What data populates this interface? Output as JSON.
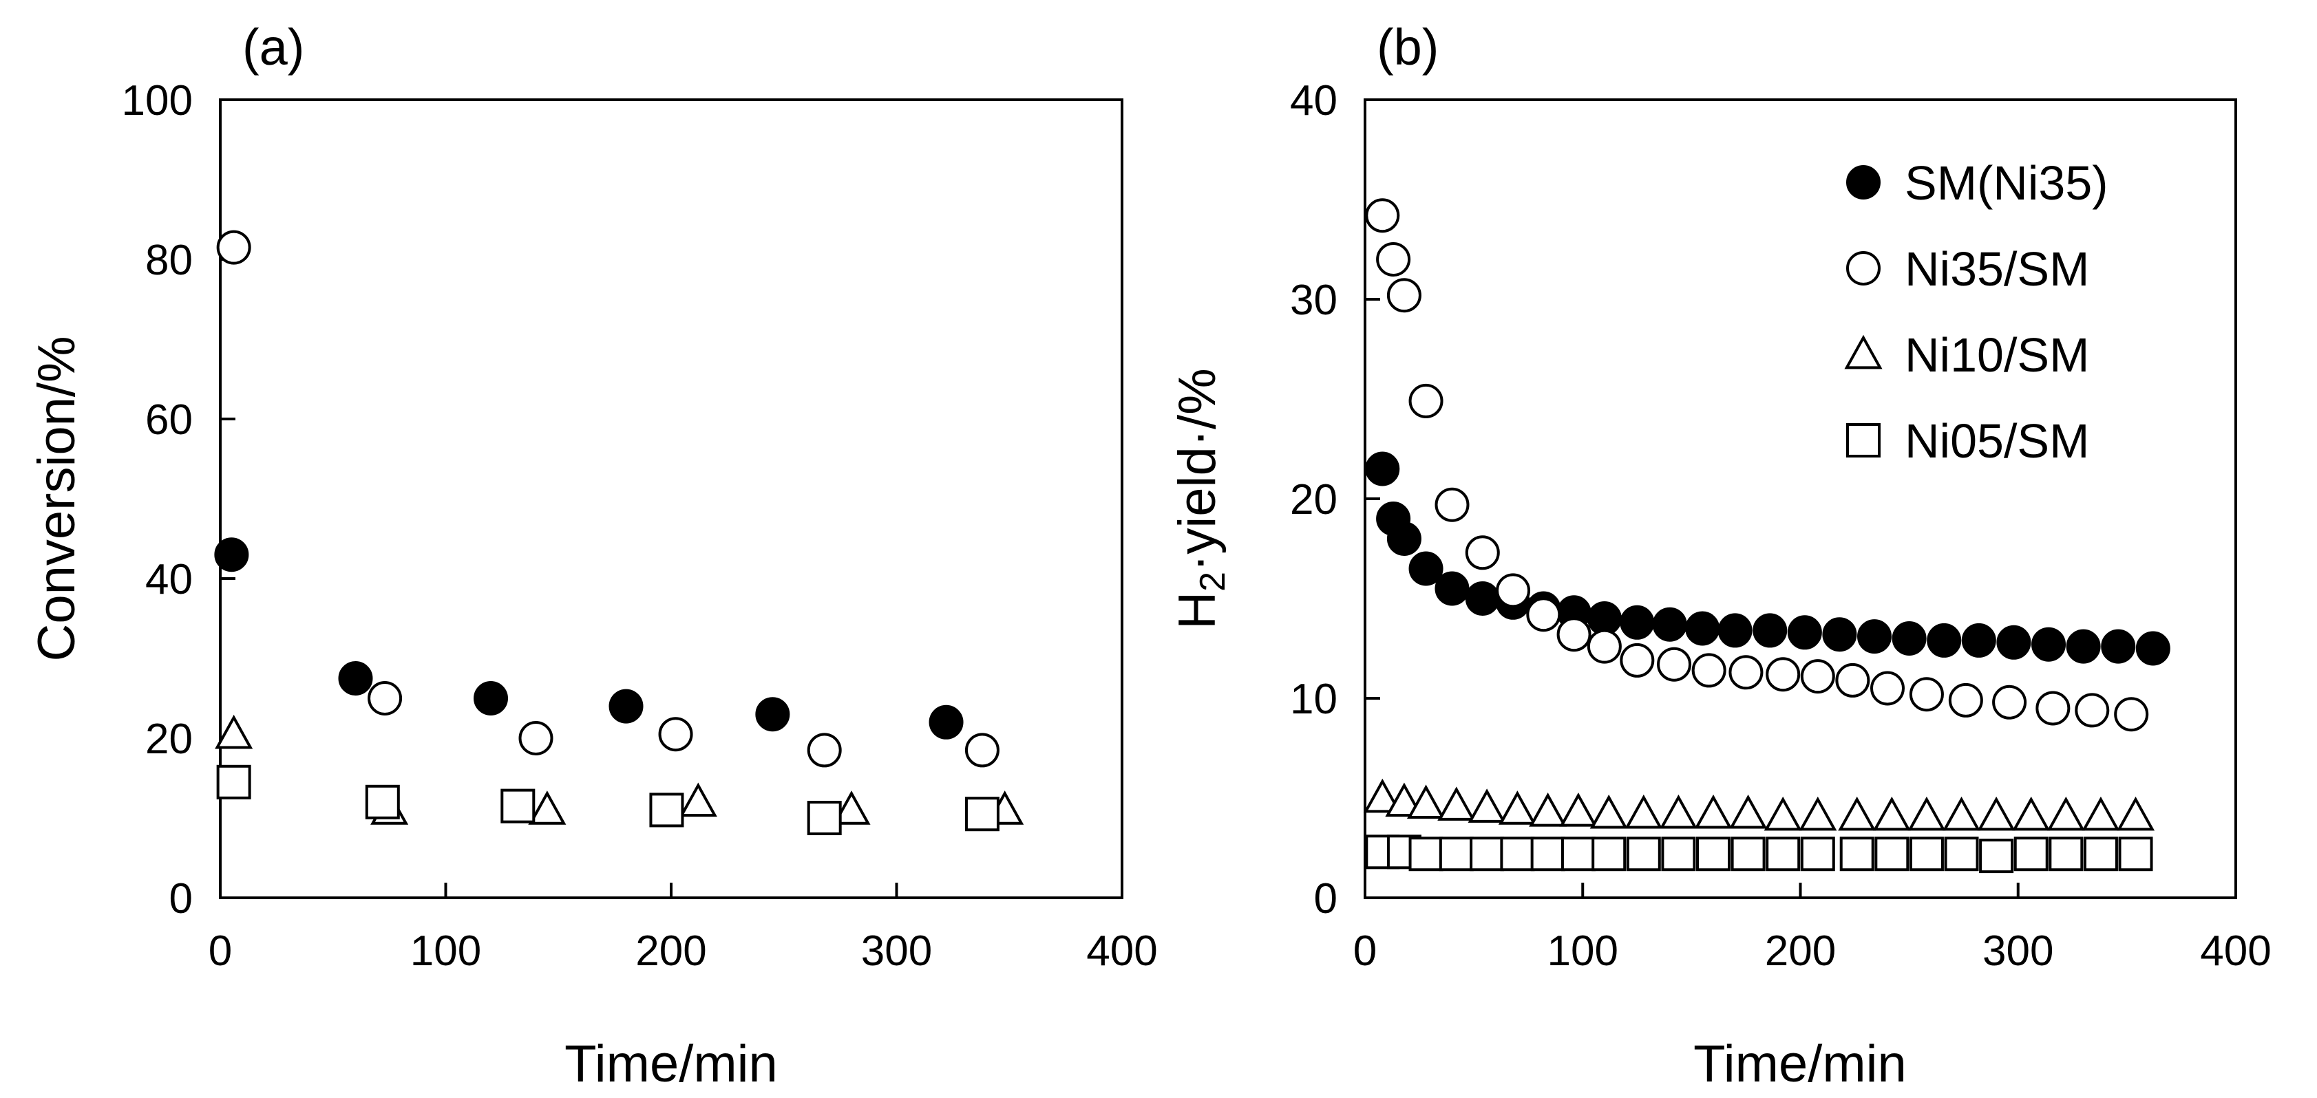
{
  "chart_data": [
    {
      "type": "scatter",
      "panel_label": "(a)",
      "xlabel": "Time/min",
      "ylabel": "Conversion/%",
      "xlim": [
        0,
        400
      ],
      "ylim": [
        0,
        100
      ],
      "xticks": [
        0,
        100,
        200,
        300,
        400
      ],
      "yticks": [
        0,
        20,
        40,
        60,
        80,
        100
      ],
      "grid": false,
      "series": [
        {
          "name": "SM(Ni35)",
          "marker": "filled-circle",
          "x": [
            5,
            60,
            120,
            180,
            245,
            322
          ],
          "y": [
            43,
            27.5,
            25,
            24,
            23,
            22
          ]
        },
        {
          "name": "Ni35/SM",
          "marker": "open-circle",
          "x": [
            6,
            73,
            140,
            202,
            268,
            338
          ],
          "y": [
            81.5,
            25,
            20,
            20.5,
            18.5,
            18.5
          ]
        },
        {
          "name": "Ni10/SM",
          "marker": "open-triangle",
          "x": [
            6,
            75,
            145,
            212,
            280,
            348
          ],
          "y": [
            20.5,
            11,
            11,
            12,
            11,
            11
          ]
        },
        {
          "name": "Ni05/SM",
          "marker": "open-square",
          "x": [
            6,
            72,
            132,
            198,
            268,
            338
          ],
          "y": [
            14.5,
            12,
            11.5,
            11,
            10,
            10.5
          ]
        }
      ]
    },
    {
      "type": "scatter",
      "panel_label": "(b)",
      "xlabel": "Time/min",
      "ylabel": "H2·yield·/%",
      "ylabel_main": "H",
      "ylabel_sub": "2",
      "ylabel_rest": "·yield·/%",
      "xlim": [
        0,
        400
      ],
      "ylim": [
        0,
        40
      ],
      "xticks": [
        0,
        100,
        200,
        300,
        400
      ],
      "yticks": [
        0,
        10,
        20,
        30,
        40
      ],
      "grid": false,
      "legend_position": "top-right",
      "series": [
        {
          "name": "SM(Ni35)",
          "marker": "filled-circle",
          "x": [
            8,
            13,
            18,
            28,
            40,
            54,
            68,
            82,
            96,
            110,
            125,
            140,
            155,
            170,
            186,
            202,
            218,
            234,
            250,
            266,
            282,
            298,
            314,
            330,
            346,
            362
          ],
          "y": [
            21.5,
            19,
            18,
            16.5,
            15.5,
            15,
            14.8,
            14.5,
            14.3,
            14,
            13.8,
            13.7,
            13.5,
            13.4,
            13.4,
            13.3,
            13.2,
            13.1,
            13,
            12.9,
            12.9,
            12.8,
            12.7,
            12.6,
            12.6,
            12.5
          ]
        },
        {
          "name": "Ni35/SM",
          "marker": "open-circle",
          "x": [
            8,
            13,
            18,
            28,
            40,
            54,
            68,
            82,
            96,
            110,
            125,
            142,
            158,
            175,
            192,
            208,
            224,
            240,
            258,
            276,
            296,
            316,
            334,
            352
          ],
          "y": [
            34.2,
            32,
            30.2,
            24.9,
            19.7,
            17.3,
            15.4,
            14.2,
            13.2,
            12.6,
            11.9,
            11.7,
            11.4,
            11.3,
            11.2,
            11.1,
            10.9,
            10.5,
            10.2,
            9.9,
            9.8,
            9.5,
            9.4,
            9.2
          ]
        },
        {
          "name": "Ni10/SM",
          "marker": "open-triangle",
          "x": [
            8,
            18,
            28,
            42,
            56,
            70,
            84,
            98,
            112,
            128,
            144,
            160,
            176,
            192,
            208,
            226,
            242,
            258,
            274,
            290,
            306,
            322,
            338,
            354
          ],
          "y": [
            5,
            4.8,
            4.7,
            4.6,
            4.5,
            4.4,
            4.3,
            4.3,
            4.2,
            4.2,
            4.2,
            4.2,
            4.2,
            4.1,
            4.1,
            4.1,
            4.1,
            4.1,
            4.1,
            4.1,
            4.1,
            4.1,
            4.1,
            4.1
          ]
        },
        {
          "name": "Ni05/SM",
          "marker": "open-square",
          "x": [
            8,
            18,
            28,
            42,
            56,
            70,
            84,
            98,
            112,
            128,
            144,
            160,
            176,
            192,
            208,
            226,
            242,
            258,
            274,
            290,
            306,
            322,
            338,
            354
          ],
          "y": [
            2.3,
            2.3,
            2.2,
            2.2,
            2.2,
            2.2,
            2.2,
            2.2,
            2.2,
            2.2,
            2.2,
            2.2,
            2.2,
            2.2,
            2.2,
            2.2,
            2.2,
            2.2,
            2.2,
            2.1,
            2.2,
            2.2,
            2.2,
            2.2
          ]
        }
      ]
    }
  ]
}
